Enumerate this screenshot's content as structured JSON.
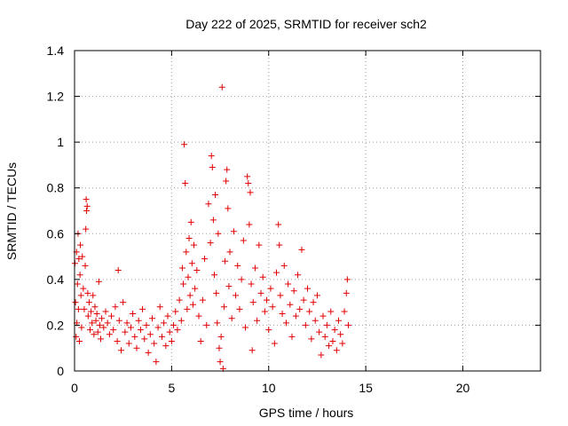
{
  "chart_data": {
    "type": "scatter",
    "title": "Day 222 of 2025, SRMTID for receiver sch2",
    "xlabel": "GPS time / hours",
    "ylabel": "SRMTID / TECUs",
    "xlim": [
      0,
      24
    ],
    "ylim": [
      0,
      1.4
    ],
    "xticks": [
      0,
      5,
      10,
      15,
      20
    ],
    "xtick_labels": [
      "0",
      "5",
      "10",
      "15",
      "20"
    ],
    "yticks": [
      0,
      0.2,
      0.4,
      0.6,
      0.8,
      1.0,
      1.2,
      1.4
    ],
    "ytick_labels": [
      "0",
      "0.2",
      "0.4",
      "0.6",
      "0.8",
      "1",
      "1.2",
      "1.4"
    ],
    "grid": true,
    "marker": "+",
    "color": "#e00000",
    "data_x_range_hours": [
      0,
      14.1
    ],
    "series": [
      {
        "name": "SRMTID",
        "points": [
          [
            0.02,
            0.47
          ],
          [
            0.05,
            0.3
          ],
          [
            0.08,
            0.15
          ],
          [
            0.1,
            0.52
          ],
          [
            0.12,
            0.21
          ],
          [
            0.15,
            0.38
          ],
          [
            0.18,
            0.6
          ],
          [
            0.2,
            0.27
          ],
          [
            0.22,
            0.49
          ],
          [
            0.25,
            0.13
          ],
          [
            0.28,
            0.42
          ],
          [
            0.3,
            0.55
          ],
          [
            0.33,
            0.33
          ],
          [
            0.36,
            0.19
          ],
          [
            0.4,
            0.5
          ],
          [
            0.45,
            0.36
          ],
          [
            0.5,
            0.27
          ],
          [
            0.55,
            0.46
          ],
          [
            0.58,
            0.62
          ],
          [
            0.6,
            0.75
          ],
          [
            0.62,
            0.7
          ],
          [
            0.65,
            0.72
          ],
          [
            0.68,
            0.34
          ],
          [
            0.7,
            0.24
          ],
          [
            0.75,
            0.3
          ],
          [
            0.8,
            0.18
          ],
          [
            0.85,
            0.26
          ],
          [
            0.9,
            0.21
          ],
          [
            0.95,
            0.33
          ],
          [
            1.0,
            0.16
          ],
          [
            1.05,
            0.28
          ],
          [
            1.1,
            0.22
          ],
          [
            1.15,
            0.25
          ],
          [
            1.2,
            0.17
          ],
          [
            1.25,
            0.39
          ],
          [
            1.3,
            0.2
          ],
          [
            1.35,
            0.14
          ],
          [
            1.4,
            0.23
          ],
          [
            1.5,
            0.19
          ],
          [
            1.6,
            0.26
          ],
          [
            1.7,
            0.21
          ],
          [
            1.8,
            0.16
          ],
          [
            1.9,
            0.24
          ],
          [
            2.0,
            0.18
          ],
          [
            2.1,
            0.28
          ],
          [
            2.2,
            0.13
          ],
          [
            2.25,
            0.44
          ],
          [
            2.3,
            0.22
          ],
          [
            2.4,
            0.09
          ],
          [
            2.5,
            0.3
          ],
          [
            2.6,
            0.17
          ],
          [
            2.7,
            0.21
          ],
          [
            2.8,
            0.12
          ],
          [
            2.9,
            0.19
          ],
          [
            3.0,
            0.25
          ],
          [
            3.1,
            0.15
          ],
          [
            3.2,
            0.1
          ],
          [
            3.3,
            0.22
          ],
          [
            3.4,
            0.18
          ],
          [
            3.5,
            0.27
          ],
          [
            3.6,
            0.14
          ],
          [
            3.7,
            0.2
          ],
          [
            3.8,
            0.08
          ],
          [
            3.9,
            0.16
          ],
          [
            4.0,
            0.23
          ],
          [
            4.1,
            0.12
          ],
          [
            4.2,
            0.04
          ],
          [
            4.3,
            0.19
          ],
          [
            4.4,
            0.28
          ],
          [
            4.5,
            0.15
          ],
          [
            4.6,
            0.21
          ],
          [
            4.7,
            0.11
          ],
          [
            4.8,
            0.24
          ],
          [
            4.9,
            0.17
          ],
          [
            5.0,
            0.13
          ],
          [
            5.1,
            0.2
          ],
          [
            5.2,
            0.26
          ],
          [
            5.3,
            0.18
          ],
          [
            5.4,
            0.31
          ],
          [
            5.5,
            0.22
          ],
          [
            5.55,
            0.45
          ],
          [
            5.6,
            0.38
          ],
          [
            5.65,
            0.99
          ],
          [
            5.7,
            0.82
          ],
          [
            5.75,
            0.52
          ],
          [
            5.8,
            0.27
          ],
          [
            5.85,
            0.41
          ],
          [
            5.9,
            0.58
          ],
          [
            5.95,
            0.33
          ],
          [
            6.0,
            0.65
          ],
          [
            6.05,
            0.47
          ],
          [
            6.1,
            0.29
          ],
          [
            6.15,
            0.55
          ],
          [
            6.2,
            0.36
          ],
          [
            6.3,
            0.44
          ],
          [
            6.4,
            0.24
          ],
          [
            6.5,
            0.13
          ],
          [
            6.6,
            0.31
          ],
          [
            6.7,
            0.49
          ],
          [
            6.8,
            0.2
          ],
          [
            6.9,
            0.73
          ],
          [
            7.0,
            0.56
          ],
          [
            7.05,
            0.94
          ],
          [
            7.1,
            0.89
          ],
          [
            7.15,
            0.66
          ],
          [
            7.2,
            0.42
          ],
          [
            7.25,
            0.77
          ],
          [
            7.3,
            0.34
          ],
          [
            7.35,
            0.21
          ],
          [
            7.4,
            0.6
          ],
          [
            7.45,
            0.1
          ],
          [
            7.5,
            0.04
          ],
          [
            7.55,
            0.15
          ],
          [
            7.6,
            1.24
          ],
          [
            7.65,
            0.01
          ],
          [
            7.7,
            0.28
          ],
          [
            7.75,
            0.48
          ],
          [
            7.8,
            0.83
          ],
          [
            7.85,
            0.88
          ],
          [
            7.9,
            0.71
          ],
          [
            7.95,
            0.37
          ],
          [
            8.0,
            0.52
          ],
          [
            8.1,
            0.23
          ],
          [
            8.2,
            0.61
          ],
          [
            8.3,
            0.33
          ],
          [
            8.4,
            0.46
          ],
          [
            8.5,
            0.27
          ],
          [
            8.6,
            0.4
          ],
          [
            8.7,
            0.57
          ],
          [
            8.8,
            0.19
          ],
          [
            8.9,
            0.85
          ],
          [
            8.95,
            0.82
          ],
          [
            9.0,
            0.64
          ],
          [
            9.05,
            0.78
          ],
          [
            9.1,
            0.38
          ],
          [
            9.15,
            0.09
          ],
          [
            9.2,
            0.3
          ],
          [
            9.3,
            0.45
          ],
          [
            9.4,
            0.22
          ],
          [
            9.5,
            0.55
          ],
          [
            9.6,
            0.34
          ],
          [
            9.7,
            0.41
          ],
          [
            9.8,
            0.26
          ],
          [
            9.9,
            0.31
          ],
          [
            10.0,
            0.18
          ],
          [
            10.1,
            0.36
          ],
          [
            10.2,
            0.28
          ],
          [
            10.3,
            0.12
          ],
          [
            10.4,
            0.43
          ],
          [
            10.5,
            0.64
          ],
          [
            10.55,
            0.55
          ],
          [
            10.6,
            0.33
          ],
          [
            10.7,
            0.25
          ],
          [
            10.8,
            0.46
          ],
          [
            10.9,
            0.21
          ],
          [
            11.0,
            0.38
          ],
          [
            11.1,
            0.29
          ],
          [
            11.2,
            0.15
          ],
          [
            11.3,
            0.35
          ],
          [
            11.4,
            0.24
          ],
          [
            11.5,
            0.42
          ],
          [
            11.6,
            0.27
          ],
          [
            11.7,
            0.53
          ],
          [
            11.8,
            0.31
          ],
          [
            11.9,
            0.2
          ],
          [
            12.0,
            0.36
          ],
          [
            12.1,
            0.26
          ],
          [
            12.2,
            0.14
          ],
          [
            12.3,
            0.3
          ],
          [
            12.4,
            0.22
          ],
          [
            12.5,
            0.33
          ],
          [
            12.6,
            0.17
          ],
          [
            12.7,
            0.07
          ],
          [
            12.8,
            0.24
          ],
          [
            12.9,
            0.15
          ],
          [
            13.0,
            0.2
          ],
          [
            13.1,
            0.11
          ],
          [
            13.2,
            0.26
          ],
          [
            13.3,
            0.13
          ],
          [
            13.4,
            0.18
          ],
          [
            13.5,
            0.09
          ],
          [
            13.6,
            0.22
          ],
          [
            13.7,
            0.16
          ],
          [
            13.8,
            0.12
          ],
          [
            13.9,
            0.26
          ],
          [
            14.0,
            0.34
          ],
          [
            14.05,
            0.4
          ],
          [
            14.1,
            0.2
          ]
        ]
      }
    ]
  }
}
